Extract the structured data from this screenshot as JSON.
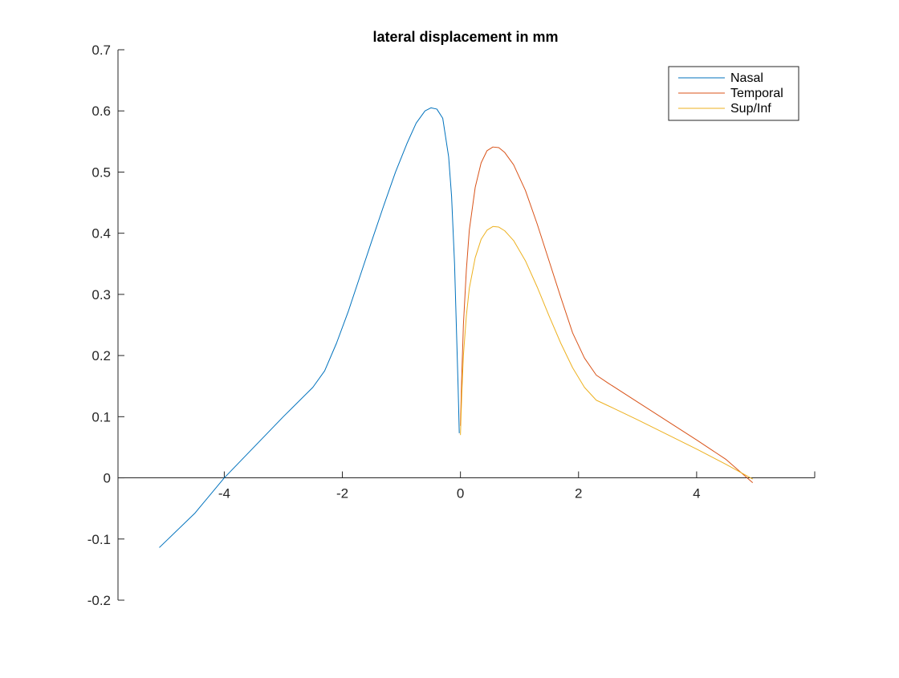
{
  "chart_data": {
    "type": "line",
    "title": "lateral displacement in mm",
    "xlabel": "",
    "ylabel": "",
    "xlim": [
      -5.8,
      6.0
    ],
    "ylim": [
      -0.2,
      0.7
    ],
    "xticks": [
      -4,
      -2,
      0,
      2,
      4
    ],
    "xtick_labels": [
      "-4",
      "-2",
      "0",
      "2",
      "4"
    ],
    "yticks": [
      -0.2,
      -0.1,
      0,
      0.1,
      0.2,
      0.3,
      0.4,
      0.5,
      0.6,
      0.7
    ],
    "ytick_labels": [
      "-0.2",
      "-0.1",
      "0",
      "0.1",
      "0.2",
      "0.3",
      "0.4",
      "0.5",
      "0.6",
      "0.7"
    ],
    "grid": false,
    "legend_position": "top-right",
    "series": [
      {
        "name": "Nasal",
        "color": "#0072BD",
        "points": [
          [
            -5.1,
            -0.114
          ],
          [
            -4.5,
            -0.058
          ],
          [
            -4.0,
            0.0
          ],
          [
            -3.5,
            0.05
          ],
          [
            -3.0,
            0.1
          ],
          [
            -2.5,
            0.148
          ],
          [
            -2.3,
            0.175
          ],
          [
            -2.1,
            0.22
          ],
          [
            -1.9,
            0.272
          ],
          [
            -1.7,
            0.33
          ],
          [
            -1.5,
            0.388
          ],
          [
            -1.3,
            0.445
          ],
          [
            -1.1,
            0.5
          ],
          [
            -0.9,
            0.548
          ],
          [
            -0.75,
            0.58
          ],
          [
            -0.6,
            0.6
          ],
          [
            -0.5,
            0.605
          ],
          [
            -0.4,
            0.603
          ],
          [
            -0.3,
            0.588
          ],
          [
            -0.2,
            0.525
          ],
          [
            -0.15,
            0.46
          ],
          [
            -0.1,
            0.35
          ],
          [
            -0.07,
            0.25
          ],
          [
            -0.04,
            0.15
          ],
          [
            -0.02,
            0.073
          ]
        ]
      },
      {
        "name": "Temporal",
        "color": "#D95319",
        "points": [
          [
            0.0,
            0.085
          ],
          [
            0.02,
            0.16
          ],
          [
            0.05,
            0.25
          ],
          [
            0.1,
            0.34
          ],
          [
            0.15,
            0.405
          ],
          [
            0.25,
            0.475
          ],
          [
            0.35,
            0.515
          ],
          [
            0.45,
            0.535
          ],
          [
            0.55,
            0.541
          ],
          [
            0.65,
            0.54
          ],
          [
            0.75,
            0.532
          ],
          [
            0.9,
            0.512
          ],
          [
            1.1,
            0.47
          ],
          [
            1.3,
            0.415
          ],
          [
            1.5,
            0.355
          ],
          [
            1.7,
            0.295
          ],
          [
            1.9,
            0.237
          ],
          [
            2.1,
            0.196
          ],
          [
            2.3,
            0.168
          ],
          [
            2.5,
            0.155
          ],
          [
            3.0,
            0.124
          ],
          [
            3.5,
            0.093
          ],
          [
            4.0,
            0.062
          ],
          [
            4.5,
            0.03
          ],
          [
            4.95,
            -0.008
          ]
        ]
      },
      {
        "name": "Sup/Inf",
        "color": "#EDB120",
        "points": [
          [
            0.0,
            0.07
          ],
          [
            0.02,
            0.13
          ],
          [
            0.05,
            0.2
          ],
          [
            0.1,
            0.265
          ],
          [
            0.15,
            0.31
          ],
          [
            0.25,
            0.36
          ],
          [
            0.35,
            0.39
          ],
          [
            0.45,
            0.405
          ],
          [
            0.55,
            0.411
          ],
          [
            0.65,
            0.41
          ],
          [
            0.75,
            0.404
          ],
          [
            0.9,
            0.388
          ],
          [
            1.1,
            0.355
          ],
          [
            1.3,
            0.312
          ],
          [
            1.5,
            0.265
          ],
          [
            1.7,
            0.22
          ],
          [
            1.9,
            0.18
          ],
          [
            2.1,
            0.148
          ],
          [
            2.3,
            0.127
          ],
          [
            2.5,
            0.118
          ],
          [
            3.0,
            0.095
          ],
          [
            3.5,
            0.071
          ],
          [
            4.0,
            0.047
          ],
          [
            4.5,
            0.022
          ],
          [
            4.95,
            -0.002
          ]
        ]
      }
    ]
  }
}
